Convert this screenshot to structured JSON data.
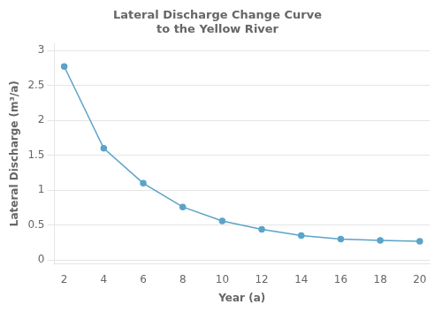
{
  "chart_data": {
    "type": "line",
    "title": [
      "Lateral Discharge Change Curve",
      "to the Yellow River"
    ],
    "x_label": "Year (a)",
    "y_label": "Lateral Discharge (m³/a)",
    "x": [
      2,
      4,
      6,
      8,
      10,
      12,
      14,
      16,
      18,
      20
    ],
    "values": [
      2.77,
      1.6,
      1.1,
      0.76,
      0.56,
      0.44,
      0.35,
      0.3,
      0.28,
      0.27
    ],
    "color": "#5ba3c9",
    "marker": "circle",
    "line_style": "solid",
    "xlim": [
      1.5,
      20.5
    ],
    "ylim": [
      -0.05,
      3.1
    ],
    "xticks": [
      2,
      4,
      6,
      8,
      10,
      12,
      14,
      16,
      18,
      20
    ],
    "yticks": [
      0,
      0.5,
      1,
      1.5,
      2,
      2.5,
      3
    ],
    "grid": "y",
    "legend": false
  }
}
